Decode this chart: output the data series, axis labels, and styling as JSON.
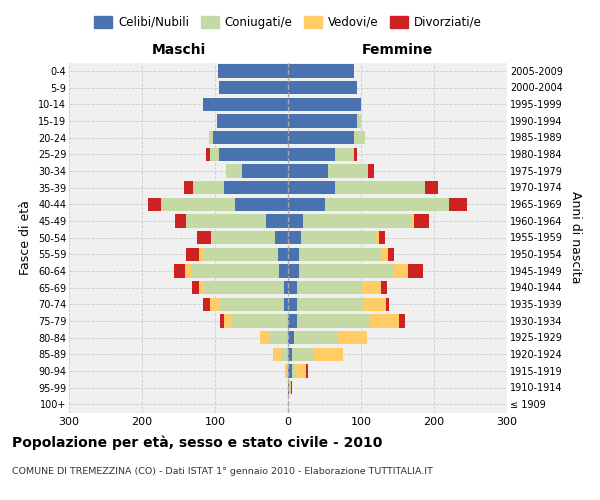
{
  "age_groups": [
    "100+",
    "95-99",
    "90-94",
    "85-89",
    "80-84",
    "75-79",
    "70-74",
    "65-69",
    "60-64",
    "55-59",
    "50-54",
    "45-49",
    "40-44",
    "35-39",
    "30-34",
    "25-29",
    "20-24",
    "15-19",
    "10-14",
    "5-9",
    "0-4"
  ],
  "birth_years": [
    "≤ 1909",
    "1910-1914",
    "1915-1919",
    "1920-1924",
    "1925-1929",
    "1930-1934",
    "1935-1939",
    "1940-1944",
    "1945-1949",
    "1950-1954",
    "1955-1959",
    "1960-1964",
    "1965-1969",
    "1970-1974",
    "1975-1979",
    "1980-1984",
    "1985-1989",
    "1990-1994",
    "1995-1999",
    "2000-2004",
    "2005-2009"
  ],
  "male_celibe": [
    0,
    0,
    0,
    0,
    0,
    0,
    5,
    5,
    13,
    14,
    18,
    30,
    72,
    88,
    63,
    95,
    103,
    97,
    117,
    95,
    96
  ],
  "male_coniugato": [
    0,
    0,
    2,
    10,
    26,
    78,
    90,
    112,
    120,
    103,
    87,
    110,
    102,
    42,
    22,
    12,
    5,
    0,
    0,
    0,
    0
  ],
  "male_vedovo": [
    0,
    0,
    2,
    10,
    12,
    10,
    12,
    5,
    8,
    5,
    0,
    0,
    0,
    0,
    0,
    0,
    0,
    0,
    0,
    0,
    0
  ],
  "male_divorziato": [
    0,
    0,
    0,
    0,
    0,
    5,
    10,
    10,
    15,
    18,
    20,
    15,
    18,
    12,
    0,
    5,
    0,
    0,
    0,
    0,
    0
  ],
  "female_nubile": [
    0,
    2,
    5,
    5,
    8,
    12,
    12,
    12,
    15,
    15,
    18,
    20,
    50,
    65,
    55,
    65,
    90,
    95,
    100,
    95,
    90
  ],
  "female_coniugata": [
    0,
    0,
    5,
    30,
    60,
    100,
    92,
    90,
    130,
    112,
    102,
    148,
    170,
    122,
    55,
    25,
    15,
    5,
    0,
    0,
    0
  ],
  "female_vedova": [
    0,
    2,
    15,
    40,
    40,
    40,
    30,
    25,
    20,
    10,
    5,
    5,
    0,
    0,
    0,
    0,
    0,
    0,
    0,
    0,
    0
  ],
  "female_divorziata": [
    0,
    2,
    2,
    0,
    0,
    8,
    5,
    8,
    20,
    8,
    8,
    20,
    25,
    18,
    8,
    5,
    0,
    0,
    0,
    0,
    0
  ],
  "color_celibe": "#4A72B0",
  "color_coniugato": "#C5D9A4",
  "color_vedovo": "#FFCC66",
  "color_divorziato": "#CC2222",
  "xlim": 300,
  "title": "Popolazione per età, sesso e stato civile - 2010",
  "subtitle": "COMUNE DI TREMEZZINA (CO) - Dati ISTAT 1° gennaio 2010 - Elaborazione TUTTITALIA.IT",
  "ylabel_left": "Fasce di età",
  "ylabel_right": "Anni di nascita",
  "label_maschi": "Maschi",
  "label_femmine": "Femmine",
  "legend_labels": [
    "Celibi/Nubili",
    "Coniugati/e",
    "Vedovi/e",
    "Divorziati/e"
  ],
  "bg_color": "#ffffff",
  "plot_bg": "#f0f0f0",
  "grid_color": "#cccccc"
}
